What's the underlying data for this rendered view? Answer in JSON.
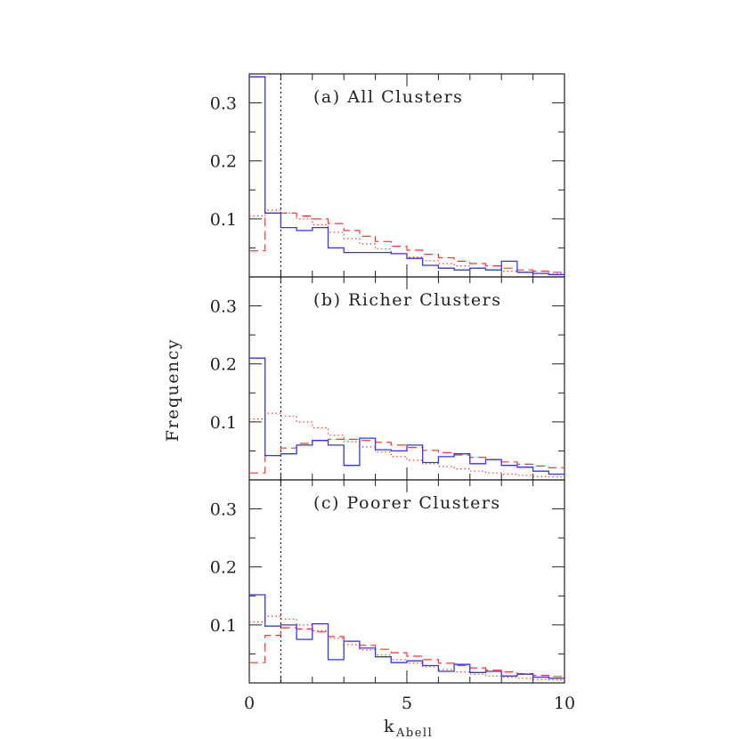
{
  "chart_data": {
    "type": "histogram-step",
    "xlabel": "k",
    "xlabel_subscript": "Abell",
    "ylabel": "Frequency",
    "xlim": [
      0,
      10
    ],
    "ylim": [
      0,
      0.35
    ],
    "x_ticks": [
      "0",
      "5",
      "10"
    ],
    "y_ticks": [
      "0.1",
      "0.2",
      "0.3"
    ],
    "vertical_reference_x": 1,
    "bin_edges": [
      0,
      0.5,
      1,
      1.5,
      2,
      2.5,
      3,
      3.5,
      4,
      4.5,
      5,
      5.5,
      6,
      6.5,
      7,
      7.5,
      8,
      8.5,
      9,
      9.5,
      10
    ],
    "colors": {
      "observed": "#3333ff",
      "model_dashed": "#ff3333",
      "model_dotted": "#ff3333",
      "reference_line": "#000000"
    },
    "panels": [
      {
        "label": "(a) All Clusters",
        "series": [
          {
            "style": "solid",
            "values": [
              0.345,
              0.11,
              0.085,
              0.08,
              0.085,
              0.05,
              0.042,
              0.042,
              0.042,
              0.04,
              0.032,
              0.02,
              0.015,
              0.012,
              0.015,
              0.012,
              0.027,
              0.008,
              0.006,
              0.004
            ]
          },
          {
            "style": "dashed",
            "values": [
              0.045,
              0.11,
              0.11,
              0.105,
              0.1,
              0.092,
              0.08,
              0.07,
              0.061,
              0.053,
              0.046,
              0.039,
              0.033,
              0.027,
              0.023,
              0.019,
              0.015,
              0.012,
              0.01,
              0.008
            ]
          },
          {
            "style": "dotted",
            "values": [
              0.105,
              0.115,
              0.11,
              0.1,
              0.09,
              0.077,
              0.066,
              0.057,
              0.048,
              0.04,
              0.034,
              0.028,
              0.023,
              0.019,
              0.015,
              0.012,
              0.01,
              0.008,
              0.006,
              0.005
            ]
          }
        ]
      },
      {
        "label": "(b) Richer Clusters",
        "series": [
          {
            "style": "solid",
            "values": [
              0.21,
              0.042,
              0.045,
              0.06,
              0.068,
              0.06,
              0.025,
              0.072,
              0.052,
              0.05,
              0.06,
              0.03,
              0.04,
              0.045,
              0.028,
              0.035,
              0.025,
              0.022,
              0.015,
              0.01
            ]
          },
          {
            "style": "dashed",
            "values": [
              0.012,
              0.042,
              0.055,
              0.063,
              0.068,
              0.07,
              0.07,
              0.068,
              0.065,
              0.06,
              0.056,
              0.051,
              0.047,
              0.043,
              0.039,
              0.035,
              0.031,
              0.027,
              0.024,
              0.021
            ]
          },
          {
            "style": "dotted",
            "values": [
              0.105,
              0.115,
              0.11,
              0.1,
              0.09,
              0.077,
              0.066,
              0.057,
              0.048,
              0.04,
              0.034,
              0.028,
              0.023,
              0.019,
              0.015,
              0.012,
              0.01,
              0.008,
              0.006,
              0.005
            ]
          }
        ]
      },
      {
        "label": "(c) Poorer Clusters",
        "series": [
          {
            "style": "solid",
            "values": [
              0.152,
              0.098,
              0.1,
              0.075,
              0.102,
              0.04,
              0.072,
              0.06,
              0.045,
              0.035,
              0.038,
              0.03,
              0.02,
              0.032,
              0.018,
              0.02,
              0.012,
              0.015,
              0.01,
              0.008
            ]
          },
          {
            "style": "dashed",
            "values": [
              0.035,
              0.082,
              0.095,
              0.093,
              0.088,
              0.08,
              0.072,
              0.065,
              0.058,
              0.052,
              0.046,
              0.04,
              0.034,
              0.03,
              0.026,
              0.022,
              0.019,
              0.016,
              0.013,
              0.011
            ]
          },
          {
            "style": "dotted",
            "values": [
              0.105,
              0.115,
              0.11,
              0.1,
              0.09,
              0.077,
              0.066,
              0.057,
              0.048,
              0.04,
              0.034,
              0.028,
              0.023,
              0.019,
              0.015,
              0.012,
              0.01,
              0.008,
              0.006,
              0.005
            ]
          }
        ]
      }
    ]
  }
}
